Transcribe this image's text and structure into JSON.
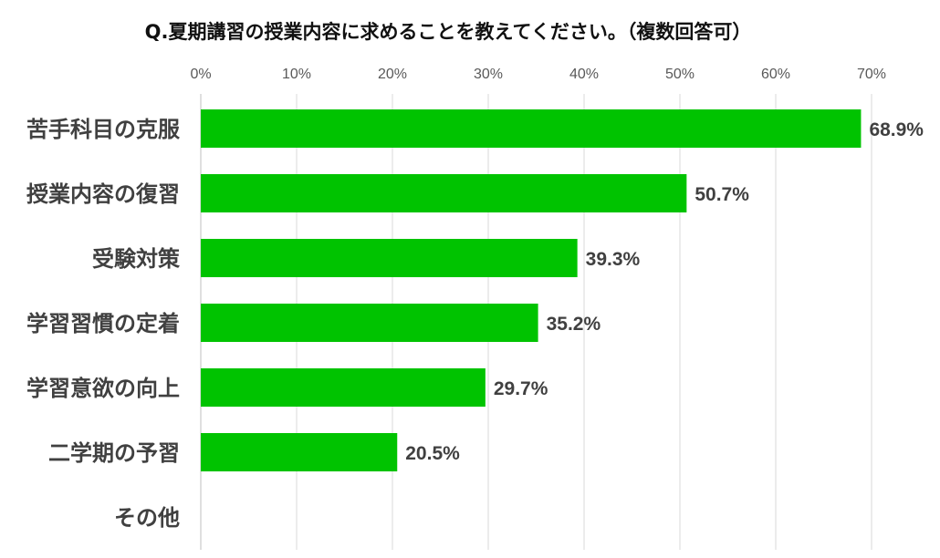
{
  "chart_data": {
    "type": "bar",
    "orientation": "horizontal",
    "title": "Q.夏期講習の授業内容に求めることを教えてください。（複数回答可）",
    "categories": [
      "苦手科目の克服",
      "授業内容の復習",
      "受験対策",
      "学習習慣の定着",
      "学習意欲の向上",
      "二学期の予習",
      "その他"
    ],
    "values": [
      68.9,
      50.7,
      39.3,
      35.2,
      29.7,
      20.5,
      null
    ],
    "value_labels": [
      "68.9%",
      "50.7%",
      "39.3%",
      "35.2%",
      "29.7%",
      "20.5%",
      ""
    ],
    "xlim": [
      0,
      70
    ],
    "xticks": [
      0,
      10,
      20,
      30,
      40,
      50,
      60,
      70
    ],
    "xtick_labels": [
      "0%",
      "10%",
      "20%",
      "30%",
      "40%",
      "50%",
      "60%",
      "70%"
    ],
    "xlabel": "",
    "ylabel": "",
    "grid": true,
    "legend": "none",
    "bar_color": "#00c300"
  }
}
